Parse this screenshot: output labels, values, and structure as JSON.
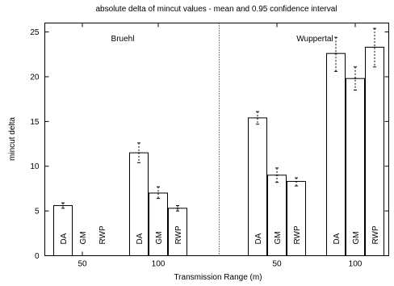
{
  "chart_data": {
    "type": "bar",
    "title": "absolute delta of mincut values - mean and 0.95 confidence interval",
    "xlabel": "Transmission Range (m)",
    "ylabel": "mincut delta",
    "ylim": [
      0,
      26
    ],
    "yticks": [
      "0",
      "5",
      "10",
      "15",
      "20",
      "25"
    ],
    "ytick_values": [
      0,
      5,
      10,
      15,
      20,
      25
    ],
    "groups": [
      {
        "panel": "Bruehl",
        "range": "50",
        "bars": [
          {
            "label": "DA",
            "mean": 5.6,
            "low": 5.3,
            "high": 5.9
          },
          {
            "label": "GM",
            "mean": 0.0,
            "low": 0.0,
            "high": 0.0
          },
          {
            "label": "RWP",
            "mean": 0.0,
            "low": 0.0,
            "high": 0.0
          }
        ]
      },
      {
        "panel": "Bruehl",
        "range": "100",
        "bars": [
          {
            "label": "DA",
            "mean": 11.5,
            "low": 10.4,
            "high": 12.6
          },
          {
            "label": "GM",
            "mean": 7.0,
            "low": 6.4,
            "high": 7.7
          },
          {
            "label": "RWP",
            "mean": 5.3,
            "low": 5.0,
            "high": 5.6
          }
        ]
      },
      {
        "panel": "Wuppertal",
        "range": "50",
        "bars": [
          {
            "label": "DA",
            "mean": 15.4,
            "low": 14.7,
            "high": 16.1
          },
          {
            "label": "GM",
            "mean": 9.0,
            "low": 8.2,
            "high": 9.8
          },
          {
            "label": "RWP",
            "mean": 8.3,
            "low": 7.8,
            "high": 8.7
          }
        ]
      },
      {
        "panel": "Wuppertal",
        "range": "100",
        "bars": [
          {
            "label": "DA",
            "mean": 22.6,
            "low": 20.6,
            "high": 24.4
          },
          {
            "label": "GM",
            "mean": 19.8,
            "low": 18.5,
            "high": 21.1
          },
          {
            "label": "RWP",
            "mean": 23.3,
            "low": 21.1,
            "high": 25.4
          }
        ]
      }
    ],
    "panels": [
      "Bruehl",
      "Wuppertal"
    ],
    "xtick_labels": [
      "50",
      "100",
      "50",
      "100"
    ],
    "grid": false,
    "legend": "none"
  }
}
